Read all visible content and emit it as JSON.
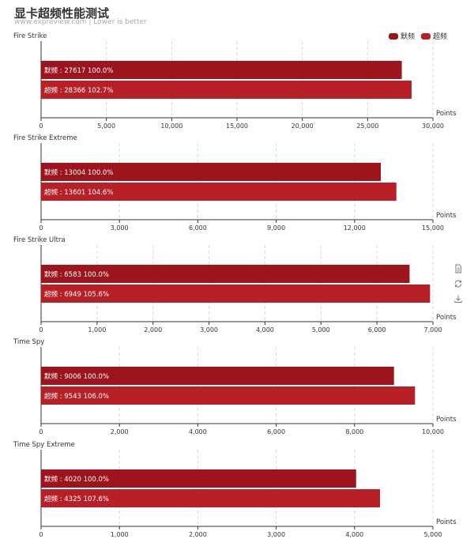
{
  "title": "显卡超频性能测试",
  "subtitle": "www.expreview.com | Lower is better",
  "legend": [
    {
      "label": "默频",
      "color": "#9e141c"
    },
    {
      "label": "超频",
      "color": "#b82028"
    }
  ],
  "toolbox": {
    "icons": [
      "data-view-icon",
      "restore-icon",
      "save-image-icon"
    ]
  },
  "chart_data": [
    {
      "type": "bar",
      "orientation": "horizontal",
      "title": "Fire Strike",
      "xlabel": "Points",
      "xlim": [
        0,
        30000
      ],
      "ticks": [
        0,
        5000,
        10000,
        15000,
        20000,
        25000,
        30000
      ],
      "tick_labels": [
        "0",
        "5,000",
        "10,000",
        "15,000",
        "20,000",
        "25,000",
        "30,000"
      ],
      "series": [
        {
          "name": "默频",
          "value": 27617,
          "label": "默频 : 27617  100.0%"
        },
        {
          "name": "超频",
          "value": 28366,
          "label": "超频 : 28366  102.7%"
        }
      ]
    },
    {
      "type": "bar",
      "orientation": "horizontal",
      "title": "Fire Strike Extreme",
      "xlabel": "Points",
      "xlim": [
        0,
        15000
      ],
      "ticks": [
        0,
        3000,
        6000,
        9000,
        12000,
        15000
      ],
      "tick_labels": [
        "0",
        "3,000",
        "6,000",
        "9,000",
        "12,000",
        "15,000"
      ],
      "series": [
        {
          "name": "默频",
          "value": 13004,
          "label": "默频 : 13004  100.0%"
        },
        {
          "name": "超频",
          "value": 13601,
          "label": "超频 : 13601  104.6%"
        }
      ]
    },
    {
      "type": "bar",
      "orientation": "horizontal",
      "title": "Fire Strike Ultra",
      "xlabel": "Points",
      "xlim": [
        0,
        7000
      ],
      "ticks": [
        0,
        1000,
        2000,
        3000,
        4000,
        5000,
        6000,
        7000
      ],
      "tick_labels": [
        "0",
        "1,000",
        "2,000",
        "3,000",
        "4,000",
        "5,000",
        "6,000",
        "7,000"
      ],
      "series": [
        {
          "name": "默频",
          "value": 6583,
          "label": "默频 : 6583  100.0%"
        },
        {
          "name": "超频",
          "value": 6949,
          "label": "超频 : 6949  105.6%"
        }
      ]
    },
    {
      "type": "bar",
      "orientation": "horizontal",
      "title": "Time Spy",
      "xlabel": "Points",
      "xlim": [
        0,
        10000
      ],
      "ticks": [
        0,
        2000,
        4000,
        6000,
        8000,
        10000
      ],
      "tick_labels": [
        "0",
        "2,000",
        "4,000",
        "6,000",
        "8,000",
        "10,000"
      ],
      "series": [
        {
          "name": "默频",
          "value": 9006,
          "label": "默频 : 9006  100.0%"
        },
        {
          "name": "超频",
          "value": 9543,
          "label": "超频 : 9543  106.0%"
        }
      ]
    },
    {
      "type": "bar",
      "orientation": "horizontal",
      "title": "Time Spy Extreme",
      "xlabel": "Points",
      "xlim": [
        0,
        5000
      ],
      "ticks": [
        0,
        1000,
        2000,
        3000,
        4000,
        5000
      ],
      "tick_labels": [
        "0",
        "1,000",
        "2,000",
        "3,000",
        "4,000",
        "5,000"
      ],
      "series": [
        {
          "name": "默频",
          "value": 4020,
          "label": "默频 : 4020  100.0%"
        },
        {
          "name": "超频",
          "value": 4325,
          "label": "超频 : 4325  107.6%"
        }
      ]
    }
  ]
}
